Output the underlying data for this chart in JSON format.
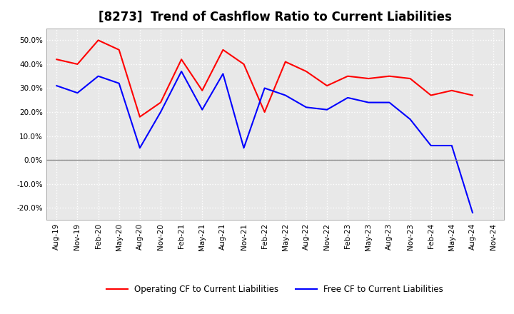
{
  "title": "[8273]  Trend of Cashflow Ratio to Current Liabilities",
  "x_labels": [
    "Aug-19",
    "Nov-19",
    "Feb-20",
    "May-20",
    "Aug-20",
    "Nov-20",
    "Feb-21",
    "May-21",
    "Aug-21",
    "Nov-21",
    "Feb-22",
    "May-22",
    "Aug-22",
    "Nov-22",
    "Feb-23",
    "May-23",
    "Aug-23",
    "Nov-23",
    "Feb-24",
    "May-24",
    "Aug-24",
    "Nov-24"
  ],
  "operating_cf": [
    42,
    40,
    50,
    46,
    18,
    24,
    42,
    29,
    46,
    40,
    20,
    41,
    37,
    31,
    35,
    34,
    35,
    34,
    27,
    29,
    27,
    null
  ],
  "free_cf": [
    31,
    28,
    35,
    32,
    5,
    20,
    37,
    21,
    36,
    5,
    30,
    27,
    22,
    21,
    26,
    24,
    24,
    17,
    6,
    6,
    -22,
    null
  ],
  "ylim": [
    -25,
    55
  ],
  "yticks": [
    -20,
    -10,
    0,
    10,
    20,
    30,
    40,
    50
  ],
  "operating_color": "#ff0000",
  "free_color": "#0000ff",
  "background_color": "#ffffff",
  "plot_bg_color": "#e8e8e8",
  "grid_color": "#ffffff",
  "zero_line_color": "#888888",
  "legend_operating": "Operating CF to Current Liabilities",
  "legend_free": "Free CF to Current Liabilities",
  "title_fontsize": 12,
  "axis_fontsize": 7.5,
  "legend_fontsize": 8.5
}
